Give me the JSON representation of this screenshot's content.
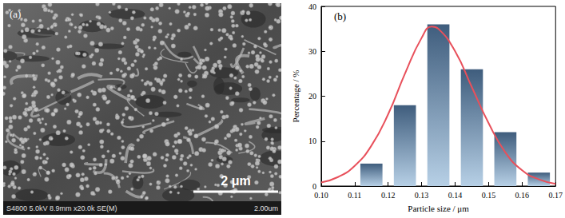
{
  "image_panel": {
    "label": "(a)",
    "scale_bar": "2 μm",
    "info": "S4800 5.0kV 8.9mm x20.0k SE(M)",
    "scale_text": "2.00um"
  },
  "chart_data": {
    "type": "histogram",
    "panel_label": "(b)",
    "x_label": "Particle size / μm",
    "y_label": "Percentage / %",
    "bins": [
      0.11,
      0.12,
      0.13,
      0.14,
      0.15,
      0.16,
      0.17
    ],
    "values": [
      5,
      18,
      36,
      26,
      12,
      3
    ],
    "color": "#3f5d7d",
    "fit": {
      "type": "line",
      "color": "#e8505b",
      "x": [
        0.1,
        0.105,
        0.11,
        0.115,
        0.12,
        0.125,
        0.13,
        0.133,
        0.135,
        0.14,
        0.145,
        0.15,
        0.155,
        0.16,
        0.165,
        0.17
      ],
      "values": [
        0.8,
        2,
        4.5,
        9,
        16,
        25,
        33,
        35.5,
        35,
        30,
        22,
        14,
        7.5,
        3.5,
        1.5,
        0.5
      ]
    },
    "xlim": [
      0.1,
      0.17
    ],
    "xticks": [
      {
        "value": 0.1,
        "label": "0.10"
      },
      {
        "value": 0.11,
        "label": "0.11"
      },
      {
        "value": 0.12,
        "label": "0.12"
      },
      {
        "value": 0.13,
        "label": "0.13"
      },
      {
        "value": 0.14,
        "label": "0.14"
      },
      {
        "value": 0.15,
        "label": "0.15"
      },
      {
        "value": 0.16,
        "label": "0.16"
      },
      {
        "value": 0.17,
        "label": "0.17"
      }
    ],
    "ylim": [
      0,
      40
    ],
    "yticks": [
      0,
      10,
      20,
      30,
      40
    ],
    "grid": false
  }
}
